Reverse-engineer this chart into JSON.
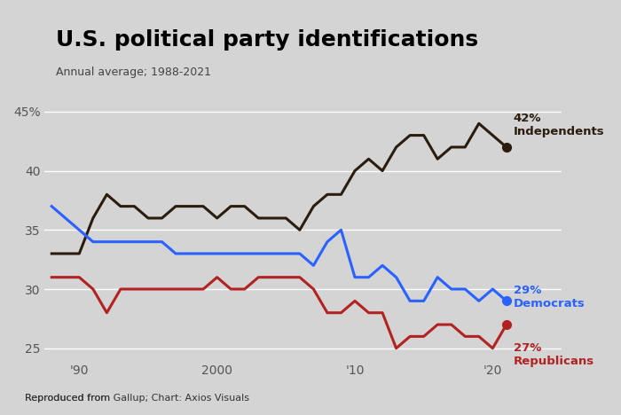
{
  "title": "U.S. political party identifications",
  "subtitle": "Annual average; 1988-2021",
  "footer": "Reproduced from Gallup; Chart: Axios Visuals",
  "background_color": "#d4d4d4",
  "plot_bg_color": "#d4d4d4",
  "years": [
    1988,
    1989,
    1990,
    1991,
    1992,
    1993,
    1994,
    1995,
    1996,
    1997,
    1998,
    1999,
    2000,
    2001,
    2002,
    2003,
    2004,
    2005,
    2006,
    2007,
    2008,
    2009,
    2010,
    2011,
    2012,
    2013,
    2014,
    2015,
    2016,
    2017,
    2018,
    2019,
    2020,
    2021
  ],
  "democrats": [
    37,
    36,
    35,
    34,
    34,
    34,
    34,
    34,
    34,
    33,
    33,
    33,
    33,
    33,
    33,
    33,
    33,
    33,
    33,
    32,
    34,
    35,
    31,
    31,
    32,
    31,
    29,
    29,
    31,
    30,
    30,
    29,
    30,
    29
  ],
  "republicans": [
    31,
    31,
    31,
    30,
    28,
    30,
    30,
    30,
    30,
    30,
    30,
    30,
    31,
    30,
    30,
    31,
    31,
    31,
    31,
    30,
    28,
    28,
    29,
    28,
    28,
    25,
    26,
    26,
    27,
    27,
    26,
    26,
    25,
    27
  ],
  "independents": [
    33,
    33,
    33,
    36,
    38,
    37,
    37,
    36,
    36,
    37,
    37,
    37,
    36,
    37,
    37,
    36,
    36,
    36,
    35,
    37,
    38,
    38,
    40,
    41,
    40,
    42,
    43,
    43,
    41,
    42,
    42,
    44,
    43,
    42
  ],
  "dem_color": "#2962FF",
  "rep_color": "#b22222",
  "ind_color": "#2b1d0e",
  "ylim": [
    24,
    47
  ],
  "yticks": [
    25,
    30,
    35,
    40,
    45
  ],
  "ytick_labels": [
    "25",
    "30",
    "35",
    "40",
    "45%"
  ],
  "xtick_positions": [
    1990,
    2000,
    2010,
    2020
  ],
  "xtick_labels": [
    "'90",
    "2000",
    "'10",
    "'20"
  ]
}
